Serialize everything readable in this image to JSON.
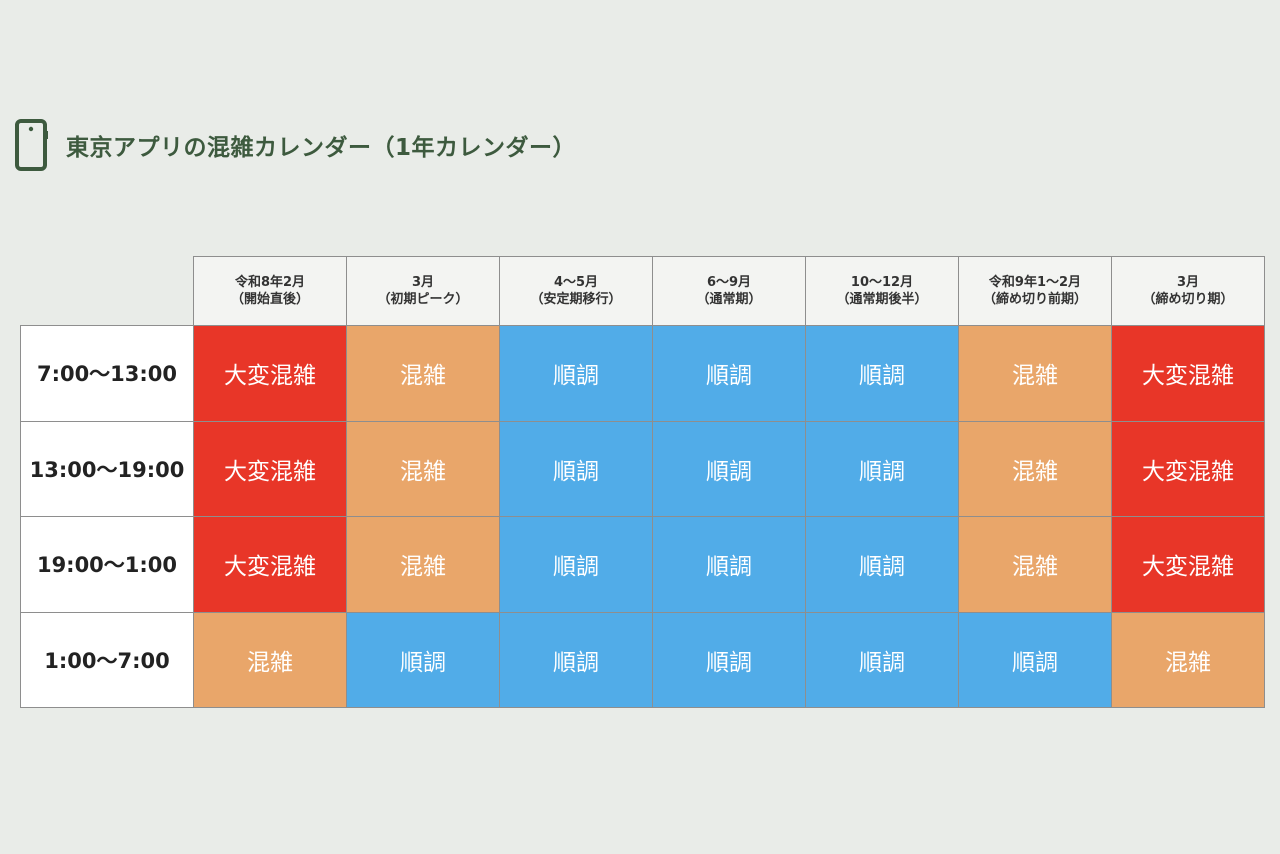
{
  "title": "東京アプリの混雑カレンダー（1年カレンダー）",
  "icon": "smartphone-icon",
  "colors": {
    "title_text": "#3d5a3e",
    "background": "#e9ece8",
    "very_crowded": "#e83628",
    "crowded": "#e9a66a",
    "smooth": "#51ace8"
  },
  "columns": [
    {
      "line1": "令和8年2月",
      "line2": "（開始直後）"
    },
    {
      "line1": "3月",
      "line2": "（初期ピーク）"
    },
    {
      "line1": "4～5月",
      "line2": "（安定期移行）"
    },
    {
      "line1": "6～9月",
      "line2": "（通常期）"
    },
    {
      "line1": "10～12月",
      "line2": "（通常期後半）"
    },
    {
      "line1": "令和9年1～2月",
      "line2": "（締め切り前期）"
    },
    {
      "line1": "3月",
      "line2": "（締め切り期）"
    }
  ],
  "rows": [
    {
      "time": "7:00～13:00",
      "cells": [
        "大変混雑",
        "混雑",
        "順調",
        "順調",
        "順調",
        "混雑",
        "大変混雑"
      ]
    },
    {
      "time": "13:00～19:00",
      "cells": [
        "大変混雑",
        "混雑",
        "順調",
        "順調",
        "順調",
        "混雑",
        "大変混雑"
      ]
    },
    {
      "time": "19:00～1:00",
      "cells": [
        "大変混雑",
        "混雑",
        "順調",
        "順調",
        "順調",
        "混雑",
        "大変混雑"
      ]
    },
    {
      "time": "1:00～7:00",
      "cells": [
        "混雑",
        "順調",
        "順調",
        "順調",
        "順調",
        "順調",
        "混雑"
      ]
    }
  ]
}
